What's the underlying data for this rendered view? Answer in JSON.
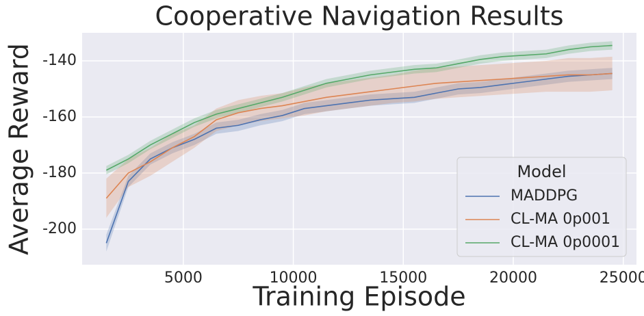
{
  "chart_data": {
    "type": "line",
    "title": "Cooperative Navigation Results",
    "xlabel": "Training Episode",
    "ylabel": "Average Reward",
    "x": [
      1500,
      2500,
      3500,
      4500,
      5500,
      6500,
      7500,
      8500,
      9500,
      10500,
      11500,
      12500,
      13500,
      14500,
      15500,
      16500,
      17500,
      18500,
      19500,
      20500,
      21500,
      22500,
      23500,
      24500
    ],
    "series": [
      {
        "name": "MADDPG",
        "color": "#4c72b0",
        "values": [
          -205,
          -183,
          -175,
          -171,
          -168,
          -164,
          -163,
          -161,
          -159.5,
          -157,
          -156,
          -155,
          -154,
          -153.5,
          -153,
          -151.5,
          -150,
          -149.5,
          -148.5,
          -147.5,
          -146.5,
          -145.5,
          -145,
          -144.5
        ],
        "lower": [
          -208,
          -185,
          -177,
          -173,
          -170,
          -166,
          -165,
          -163,
          -161.5,
          -159,
          -158,
          -157,
          -156,
          -155.5,
          -155,
          -153.5,
          -152,
          -151.5,
          -150.5,
          -149.5,
          -148.5,
          -147.5,
          -147,
          -146.5
        ],
        "upper": [
          -202,
          -181,
          -173,
          -169,
          -166,
          -162,
          -161,
          -159,
          -157.5,
          -155,
          -154,
          -153,
          -152,
          -151.5,
          -151,
          -149.5,
          -148,
          -147.5,
          -146.5,
          -145.5,
          -144.5,
          -143.5,
          -143,
          -142.5
        ]
      },
      {
        "name": "CL-MA 0p001",
        "color": "#dd8452",
        "values": [
          -189,
          -180,
          -176,
          -171,
          -167,
          -161,
          -158.5,
          -157,
          -156,
          -154.5,
          -153,
          -152,
          -151,
          -150,
          -149,
          -148,
          -147.5,
          -147,
          -146.5,
          -146,
          -145.5,
          -145,
          -145,
          -144.5
        ],
        "lower": [
          -196,
          -185,
          -181,
          -176,
          -171,
          -165,
          -163,
          -161.5,
          -160.5,
          -159.5,
          -158,
          -157,
          -156,
          -155,
          -154.5,
          -153.5,
          -153,
          -152.5,
          -152,
          -151.5,
          -151,
          -151,
          -151,
          -150.5
        ],
        "upper": [
          -182,
          -175,
          -171,
          -166,
          -163,
          -157,
          -154,
          -152.5,
          -151.5,
          -149.5,
          -148,
          -147,
          -146,
          -145,
          -143.5,
          -142.5,
          -142,
          -141.5,
          -141,
          -140.5,
          -140,
          -139,
          -139,
          -138.5
        ]
      },
      {
        "name": "CL-MA 0p0001",
        "color": "#55a868",
        "values": [
          -179,
          -175,
          -170,
          -166,
          -162,
          -159,
          -157,
          -155,
          -153,
          -150.5,
          -148,
          -146.5,
          -145,
          -144,
          -143,
          -142.5,
          -141,
          -139.5,
          -138.5,
          -138,
          -137.5,
          -136,
          -135,
          -134.5
        ],
        "lower": [
          -180.5,
          -176.5,
          -171.5,
          -167.5,
          -163.5,
          -160.5,
          -158.5,
          -156.5,
          -154.5,
          -152,
          -149.5,
          -148,
          -146.5,
          -145.5,
          -144.5,
          -144,
          -142.5,
          -141,
          -140,
          -139.5,
          -139,
          -137.5,
          -136.5,
          -136
        ],
        "upper": [
          -177.5,
          -173.5,
          -168.5,
          -164.5,
          -160.5,
          -157.5,
          -155.5,
          -153.5,
          -151.5,
          -149,
          -146.5,
          -145,
          -143.5,
          -142.5,
          -141.5,
          -141,
          -139.5,
          -138,
          -137,
          -136.5,
          -136,
          -134.5,
          -133.5,
          -133
        ]
      }
    ],
    "xlim": [
      400,
      25600
    ],
    "ylim": [
      -212.7,
      -130
    ],
    "xticks": [
      5000,
      10000,
      15000,
      20000,
      25000
    ],
    "yticks": [
      -140,
      -160,
      -180,
      -200
    ],
    "grid": true,
    "legend_title": "Model",
    "legend": "lower right"
  }
}
